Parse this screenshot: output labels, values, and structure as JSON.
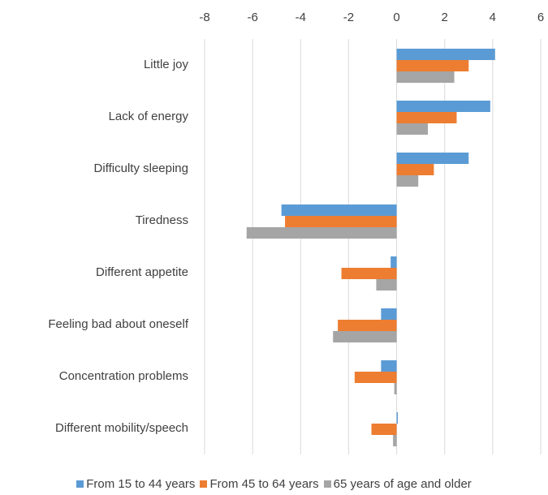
{
  "chart_data": {
    "type": "hbar",
    "categories": [
      "Little joy",
      "Lack of energy",
      "Difficulty sleeping",
      "Tiredness",
      "Different appetite",
      "Feeling bad about oneself",
      "Concentration problems",
      "Different mobility/speech"
    ],
    "series": [
      {
        "name": "From 15 to 44 years",
        "color": "#5b9bd5",
        "values": [
          4.1,
          3.9,
          3.0,
          -4.8,
          -0.25,
          -0.65,
          -0.65,
          0.05
        ]
      },
      {
        "name": "From 45 to 64 years",
        "color": "#ed7d31",
        "values": [
          3.0,
          2.5,
          1.55,
          -4.65,
          -2.3,
          -2.45,
          -1.75,
          -1.05
        ]
      },
      {
        "name": "65 years of age and older",
        "color": "#a5a5a5",
        "values": [
          2.4,
          1.3,
          0.9,
          -6.25,
          -0.85,
          -2.65,
          -0.1,
          -0.15
        ]
      }
    ],
    "xlim": [
      -8,
      6
    ],
    "xticks": [
      -8,
      -6,
      -4,
      -2,
      0,
      2,
      4,
      6
    ],
    "grid": true,
    "legend": "bottom"
  }
}
